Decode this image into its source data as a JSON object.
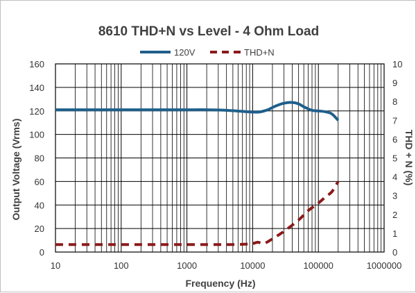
{
  "chart_data": {
    "type": "line",
    "title": "8610 THD+N  vs Level - 4 Ohm Load",
    "xlabel": "Frequency (Hz)",
    "ylabel": "Output Voltage (Vrms)",
    "y2label": "THD + N (%)",
    "x_scale": "log",
    "xlim": [
      10,
      1000000
    ],
    "ylim": [
      0,
      160
    ],
    "y2lim": [
      0,
      10
    ],
    "grid": true,
    "legend_position": "top",
    "x_ticks": [
      "10",
      "100",
      "1000",
      "10000",
      "100000",
      "1000000"
    ],
    "y_ticks": [
      "0",
      "20",
      "40",
      "60",
      "80",
      "100",
      "120",
      "140",
      "160"
    ],
    "y2_ticks": [
      "0",
      "1",
      "2",
      "3",
      "4",
      "5",
      "6",
      "7",
      "8",
      "9",
      "10"
    ],
    "series": [
      {
        "name": "120V",
        "axis": "left",
        "color": "#1f5f8b",
        "style": "solid",
        "x": [
          10,
          20,
          50,
          100,
          200,
          500,
          1000,
          2000,
          3000,
          5000,
          7000,
          10000,
          13000,
          17000,
          22000,
          30000,
          40000,
          50000,
          60000,
          80000,
          100000,
          130000,
          160000,
          200000
        ],
        "y": [
          121,
          121,
          121,
          121,
          121,
          121,
          121,
          121,
          120.8,
          120.2,
          119.6,
          119,
          119.2,
          121,
          124,
          126.5,
          127.2,
          126,
          123.5,
          120.5,
          120,
          119.2,
          117.5,
          112
        ]
      },
      {
        "name": "THD+N",
        "axis": "right",
        "color": "#8b1a1a",
        "style": "dashed",
        "x": [
          10,
          20,
          50,
          100,
          200,
          500,
          1000,
          2000,
          5000,
          8000,
          10000,
          12000,
          14000,
          16000,
          20000,
          30000,
          50000,
          70000,
          100000,
          130000,
          160000,
          200000
        ],
        "y": [
          0.4,
          0.4,
          0.4,
          0.4,
          0.4,
          0.4,
          0.4,
          0.4,
          0.4,
          0.42,
          0.45,
          0.52,
          0.45,
          0.5,
          0.7,
          1.1,
          1.7,
          2.2,
          2.6,
          2.95,
          3.2,
          3.75
        ]
      }
    ]
  }
}
